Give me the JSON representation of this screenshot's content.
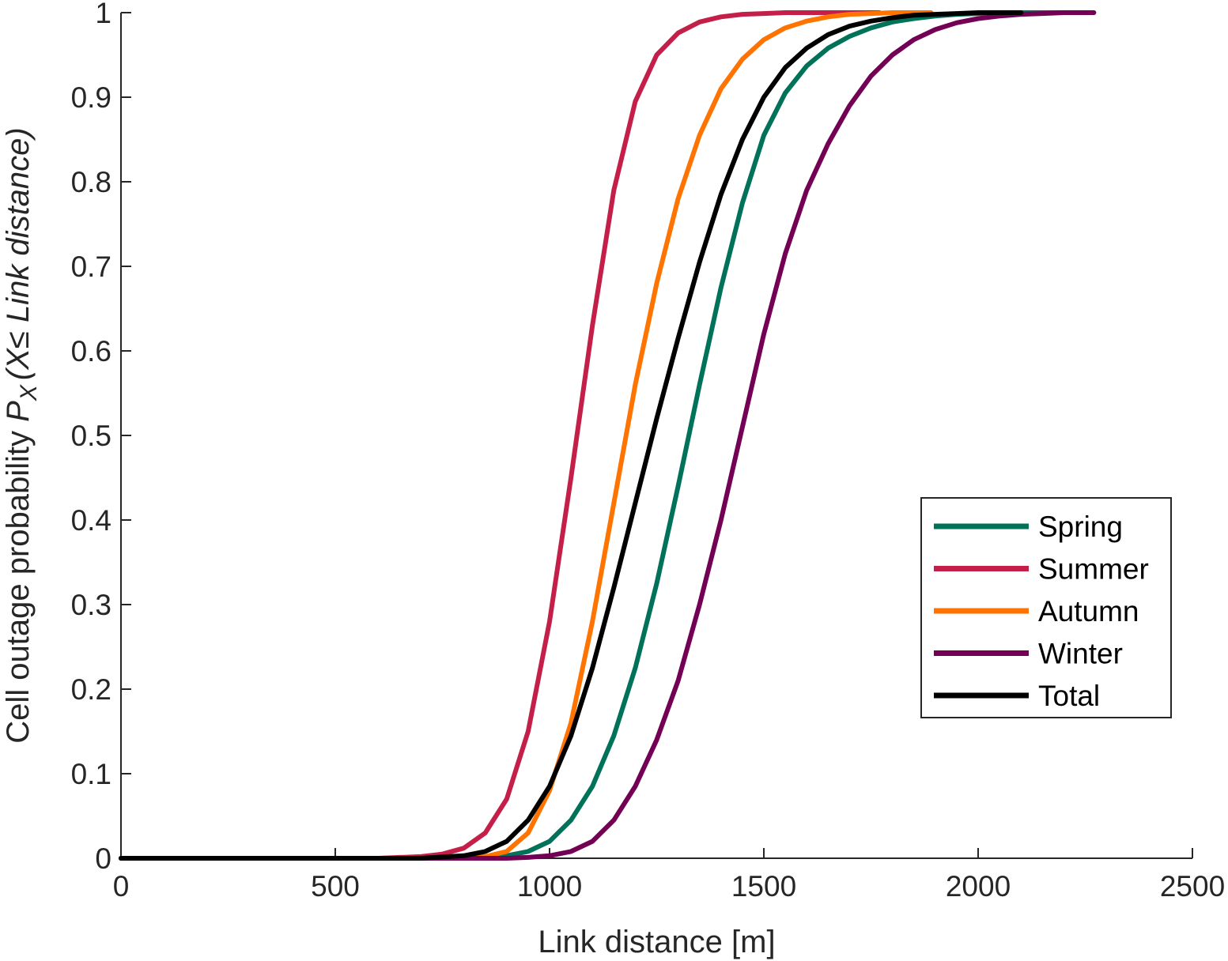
{
  "chart_data": {
    "type": "line",
    "title": "",
    "xlabel": "Link distance [m]",
    "ylabel": {
      "main": "Cell outage probability ",
      "symbol": "P",
      "subscript": "X",
      "condition": "(X≤ Link distance)"
    },
    "xlim": [
      0,
      2500
    ],
    "ylim": [
      0,
      1
    ],
    "xticks": [
      0,
      500,
      1000,
      1500,
      2000,
      2500
    ],
    "yticks": [
      0,
      0.1,
      0.2,
      0.3,
      0.4,
      0.5,
      0.6,
      0.7,
      0.8,
      0.9,
      1
    ],
    "xtick_labels": [
      "0",
      "500",
      "1000",
      "1500",
      "2000",
      "2500"
    ],
    "ytick_labels": [
      "0",
      "0.1",
      "0.2",
      "0.3",
      "0.4",
      "0.5",
      "0.6",
      "0.7",
      "0.8",
      "0.9",
      "1"
    ],
    "grid": false,
    "legend_position": "lower-right",
    "series": [
      {
        "name": "Spring",
        "color": "#007259",
        "x": [
          0,
          700,
          850,
          900,
          950,
          1000,
          1050,
          1100,
          1150,
          1200,
          1250,
          1300,
          1350,
          1400,
          1450,
          1500,
          1550,
          1600,
          1650,
          1700,
          1750,
          1800,
          1850,
          1900,
          1950,
          2000,
          2050,
          2100,
          2150,
          2200,
          2270
        ],
        "y": [
          0,
          0,
          0.001,
          0.003,
          0.008,
          0.02,
          0.045,
          0.085,
          0.145,
          0.225,
          0.325,
          0.44,
          0.56,
          0.675,
          0.775,
          0.855,
          0.905,
          0.937,
          0.958,
          0.972,
          0.982,
          0.989,
          0.993,
          0.996,
          0.998,
          0.999,
          1,
          1,
          1,
          1,
          1
        ]
      },
      {
        "name": "Summer",
        "color": "#c41f48",
        "x": [
          0,
          600,
          700,
          750,
          800,
          850,
          900,
          950,
          1000,
          1050,
          1100,
          1150,
          1200,
          1250,
          1300,
          1350,
          1400,
          1450,
          1500,
          1550,
          1600,
          1650,
          1700,
          1770
        ],
        "y": [
          0,
          0,
          0.002,
          0.005,
          0.012,
          0.03,
          0.07,
          0.15,
          0.28,
          0.45,
          0.63,
          0.79,
          0.895,
          0.95,
          0.976,
          0.989,
          0.995,
          0.998,
          0.999,
          1,
          1,
          1,
          1,
          1
        ]
      },
      {
        "name": "Autumn",
        "color": "#ff7300",
        "x": [
          0,
          750,
          850,
          900,
          950,
          1000,
          1050,
          1100,
          1150,
          1200,
          1250,
          1300,
          1350,
          1400,
          1450,
          1500,
          1550,
          1600,
          1650,
          1700,
          1750,
          1800,
          1890
        ],
        "y": [
          0,
          0,
          0.002,
          0.008,
          0.03,
          0.08,
          0.16,
          0.28,
          0.42,
          0.56,
          0.68,
          0.78,
          0.855,
          0.91,
          0.945,
          0.968,
          0.982,
          0.99,
          0.995,
          0.998,
          0.999,
          1,
          1
        ]
      },
      {
        "name": "Winter",
        "color": "#730055",
        "x": [
          0,
          900,
          950,
          1000,
          1050,
          1100,
          1150,
          1200,
          1250,
          1300,
          1350,
          1400,
          1450,
          1500,
          1550,
          1600,
          1650,
          1700,
          1750,
          1800,
          1850,
          1900,
          1950,
          2000,
          2050,
          2100,
          2150,
          2200,
          2270
        ],
        "y": [
          0,
          0,
          0.001,
          0.003,
          0.008,
          0.02,
          0.045,
          0.085,
          0.14,
          0.21,
          0.3,
          0.4,
          0.51,
          0.62,
          0.715,
          0.79,
          0.845,
          0.89,
          0.925,
          0.95,
          0.968,
          0.98,
          0.988,
          0.993,
          0.996,
          0.998,
          0.999,
          1,
          1
        ]
      },
      {
        "name": "Total",
        "color": "#000000",
        "x": [
          0,
          700,
          800,
          850,
          900,
          950,
          1000,
          1050,
          1100,
          1150,
          1200,
          1250,
          1300,
          1350,
          1400,
          1450,
          1500,
          1550,
          1600,
          1650,
          1700,
          1750,
          1800,
          1850,
          1900,
          1950,
          2000,
          2100
        ],
        "y": [
          0,
          0,
          0.003,
          0.008,
          0.02,
          0.045,
          0.085,
          0.145,
          0.225,
          0.32,
          0.42,
          0.52,
          0.615,
          0.705,
          0.785,
          0.85,
          0.9,
          0.935,
          0.958,
          0.974,
          0.984,
          0.99,
          0.994,
          0.997,
          0.998,
          0.999,
          1,
          1
        ]
      }
    ]
  }
}
